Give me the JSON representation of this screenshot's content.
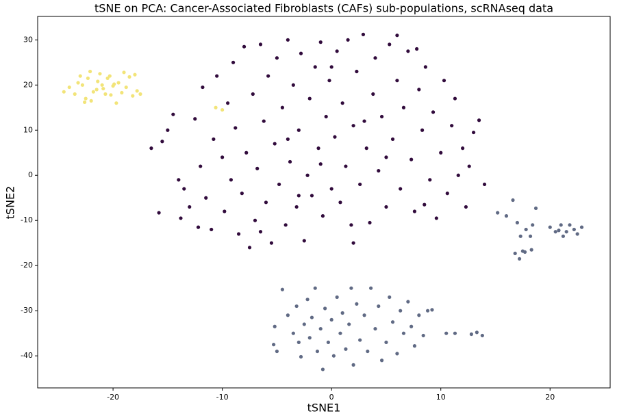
{
  "chart_data": {
    "type": "scatter",
    "title": "tSNE on PCA: Cancer-Associated Fibroblasts (CAFs) sub-populations, scRNAseq data",
    "x_label": "tSNE1",
    "y_label": "tSNE2",
    "xlim": [
      -26.9,
      25.5
    ],
    "ylim": [
      -47.1,
      35.2
    ],
    "xticks": [
      -20,
      -10,
      0,
      10,
      20
    ],
    "yticks": [
      -40,
      -30,
      -20,
      -10,
      0,
      10,
      20,
      30
    ],
    "grid": false,
    "series": [
      {
        "color": "#310b3c",
        "x": [
          -16.5,
          -15.8,
          -15.5,
          -15,
          -14.5,
          -14,
          -13.8,
          -13.5,
          -13,
          -12.5,
          -12.2,
          -12,
          -11.8,
          -11.5,
          -11,
          -10.8,
          -10.5,
          -10,
          -9.8,
          -9.5,
          -9.2,
          -9,
          -8.8,
          -8.5,
          -8.2,
          -8,
          -7.8,
          -7.5,
          -7.2,
          -7,
          -6.8,
          -6.5,
          -6.2,
          -6,
          -5.8,
          -5.5,
          -5.2,
          -5,
          -4.8,
          -4.5,
          -4.2,
          -4,
          -3.8,
          -3.5,
          -3.2,
          -3,
          -2.8,
          -2.5,
          -2.2,
          -2,
          -1.8,
          -1.5,
          -1.2,
          -1,
          -0.8,
          -0.5,
          -0.2,
          0,
          0.3,
          0.5,
          0.8,
          1,
          1.3,
          1.5,
          1.8,
          2,
          2.3,
          2.6,
          2.9,
          3.2,
          3.5,
          3.8,
          4,
          4.3,
          4.6,
          5,
          5.3,
          5.6,
          6,
          6.3,
          6.6,
          7,
          7.3,
          7.6,
          8,
          8.3,
          8.6,
          9,
          9.3,
          9.6,
          10,
          10.3,
          10.6,
          11,
          11.3,
          11.6,
          12,
          12.3,
          12.6,
          13,
          13.5,
          14,
          -3,
          2,
          -6.5,
          5,
          -1,
          8.5,
          0,
          3,
          -4,
          6,
          7.8
        ],
        "values": [
          6,
          -8.3,
          7.5,
          10,
          13.5,
          -1,
          -9.5,
          -3,
          -7,
          12.5,
          -11.5,
          2,
          19.5,
          -5,
          -12,
          8,
          22,
          4,
          -8,
          16,
          -1,
          25,
          10.5,
          -13,
          -4,
          28.5,
          5,
          -16,
          18,
          -10,
          1.5,
          29,
          12,
          -6,
          22,
          -15,
          7,
          26,
          -2,
          15,
          -11,
          30,
          3,
          20,
          -7,
          10,
          27,
          -14.5,
          0,
          17,
          -4.5,
          24,
          6,
          29.5,
          -9,
          13,
          21,
          -3,
          8.5,
          27.5,
          -6,
          16,
          2,
          30,
          -11,
          11,
          23,
          -2,
          31.2,
          6,
          -10.5,
          18,
          26,
          1,
          13,
          -7,
          29,
          8,
          21,
          -3,
          15,
          27.5,
          3.5,
          -8,
          19,
          10,
          24,
          -1,
          14,
          -9.5,
          5,
          21,
          -4,
          11,
          17,
          0,
          6,
          -7,
          2,
          9.5,
          12.2,
          -2,
          -4.5,
          -15,
          -12.5,
          4,
          2.5,
          -6.5,
          24,
          12,
          8,
          31,
          28
        ]
      },
      {
        "color": "#606a84",
        "x": [
          -5.3,
          -5,
          -5.2,
          -4.5,
          -4,
          -3.5,
          -3.2,
          -3,
          -2.8,
          -2.5,
          -2.2,
          -2,
          -1.8,
          -1.5,
          -1.3,
          -1,
          -0.8,
          -0.6,
          -0.3,
          0,
          0.2,
          0.5,
          0.8,
          1,
          1.3,
          1.6,
          1.8,
          2,
          2.3,
          2.6,
          3,
          3.3,
          3.6,
          4,
          4.3,
          4.6,
          5,
          5.3,
          5.6,
          6,
          6.3,
          6.6,
          7,
          7.3,
          7.6,
          8,
          8.4,
          8.8,
          9.2,
          10.5,
          11.3,
          12.8,
          13.3,
          13.8,
          15.2,
          16,
          16.6,
          17,
          17.3,
          17.8,
          18.4,
          18.7,
          18.2,
          16.8,
          17.2,
          17.7,
          18.3,
          17.5,
          20,
          20.5,
          21,
          21.5,
          21.8,
          22.2,
          22.5,
          22.9,
          21.2,
          20.8
        ],
        "values": [
          -37.5,
          -39,
          -33.5,
          -25.3,
          -31,
          -35,
          -29,
          -37,
          -40.2,
          -33,
          -27.5,
          -36,
          -31.5,
          -25,
          -39,
          -34,
          -43,
          -29.5,
          -37,
          -32,
          -40,
          -27,
          -35,
          -30.5,
          -38.5,
          -33,
          -25,
          -42,
          -28.5,
          -36.5,
          -31,
          -39,
          -25,
          -34,
          -29,
          -41,
          -37,
          -27,
          -32.5,
          -39.5,
          -30,
          -35,
          -28,
          -33.5,
          -37.8,
          -31,
          -35.5,
          -30,
          -29.8,
          -35,
          -35,
          -35.2,
          -34.8,
          -35.5,
          -8.3,
          -9,
          -5.5,
          -10.5,
          -13.5,
          -12,
          -11,
          -7.3,
          -13.5,
          -17.3,
          -18.5,
          -17,
          -16.5,
          -16.8,
          -11.5,
          -12.5,
          -11,
          -12.5,
          -11,
          -12,
          -13,
          -11.5,
          -13.5,
          -12.2
        ]
      },
      {
        "color": "#f2e479",
        "x": [
          -24.5,
          -24,
          -23.5,
          -23,
          -22.8,
          -22.5,
          -22.3,
          -22,
          -21.8,
          -21.5,
          -21.2,
          -21,
          -20.7,
          -20.5,
          -20.2,
          -20,
          -19.7,
          -19.5,
          -19.2,
          -19,
          -18.8,
          -18.5,
          -18.2,
          -18,
          -17.8,
          -17.5,
          -23.2,
          -22.6,
          -22.1,
          -21.4,
          -20.9,
          -20.3,
          -19.9,
          -10.6,
          -10
        ],
        "values": [
          18.5,
          19.5,
          18,
          22,
          20,
          17,
          21.5,
          16.5,
          18.5,
          19,
          22.5,
          20,
          18,
          21.5,
          17.8,
          19.8,
          16,
          20.5,
          18.3,
          22.8,
          19.5,
          21.8,
          17.6,
          22.3,
          18.7,
          18,
          20.5,
          16.2,
          23,
          20.8,
          19.2,
          22,
          20.2,
          15,
          14.5
        ]
      }
    ]
  }
}
